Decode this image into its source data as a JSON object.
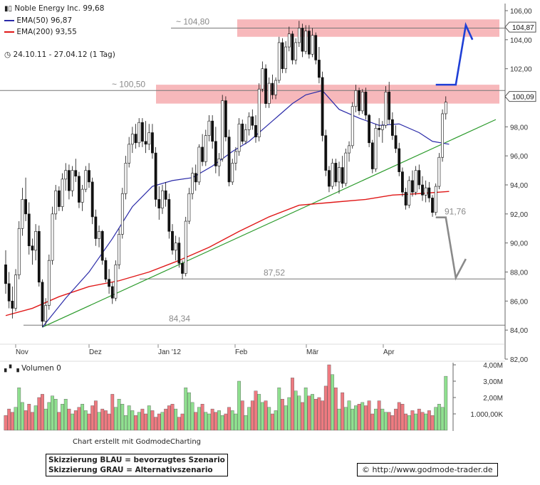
{
  "header": {
    "title": "Noble Energy Inc. 99,68",
    "ema50_label": "EMA(50) 96,87",
    "ema200_label": "EMA(200) 93,55",
    "range_label": "24.10.11 - 27.04.12 (1 Tag)"
  },
  "colors": {
    "ema50": "#2a2aa8",
    "ema200": "#e01818",
    "trend": "#2a9a2a",
    "zone": "#f4a0a4",
    "bull_volume": "#8fe08f",
    "bear_volume": "#ee7a80",
    "scenario_blue": "#1f3fd6",
    "scenario_grey": "#8a8a8a"
  },
  "chart_data": [
    {
      "type": "candlestick",
      "title": "Noble Energy Inc. 99,68",
      "x_ticks": [
        "Nov",
        "Dez",
        "Jan '12",
        "Feb",
        "Mär",
        "Apr"
      ],
      "y_ticks": [
        "82,00",
        "84,00",
        "86,00",
        "88,00",
        "90,00",
        "92,00",
        "94,00",
        "96,00",
        "98,00",
        "100,00",
        "102,00",
        "104,00",
        "106,00"
      ],
      "ylim": [
        82,
        106
      ],
      "current_price_labels": [
        "104,87",
        "100,09"
      ],
      "series": [
        {
          "name": "EMA(50) 96,87",
          "last": 96.87
        },
        {
          "name": "EMA(200) 93,55",
          "last": 93.55
        }
      ],
      "levels": [
        {
          "label": "~ 104,80",
          "value": 104.8,
          "kind": "resistance-zone",
          "zone": [
            104.2,
            105.4
          ]
        },
        {
          "label": "~ 100,50",
          "value": 100.5,
          "kind": "resistance-zone",
          "zone": [
            99.6,
            100.9
          ]
        },
        {
          "label": "87,52",
          "value": 87.52,
          "kind": "support"
        },
        {
          "label": "84,34",
          "value": 84.34,
          "kind": "support"
        },
        {
          "label": "91,76",
          "value": 91.76,
          "kind": "support-mark"
        }
      ],
      "ohlc": [
        [
          88.5,
          89.5,
          86.5,
          87.2
        ],
        [
          87.2,
          88.0,
          85.5,
          86.0
        ],
        [
          86.0,
          87.0,
          84.8,
          85.5
        ],
        [
          85.5,
          88.2,
          85.3,
          87.8
        ],
        [
          87.8,
          91.5,
          87.5,
          91.0
        ],
        [
          91.0,
          93.8,
          90.5,
          93.0
        ],
        [
          93.0,
          94.5,
          91.5,
          92.0
        ],
        [
          92.0,
          92.8,
          89.2,
          89.8
        ],
        [
          89.8,
          90.3,
          88.5,
          89.5
        ],
        [
          89.5,
          91.3,
          88.8,
          90.8
        ],
        [
          90.8,
          91.2,
          87.0,
          87.3
        ],
        [
          87.3,
          87.5,
          84.2,
          84.6
        ],
        [
          84.6,
          86.2,
          84.3,
          85.7
        ],
        [
          85.7,
          89.2,
          85.4,
          88.8
        ],
        [
          88.8,
          92.5,
          88.5,
          92.0
        ],
        [
          92.0,
          94.0,
          91.6,
          93.6
        ],
        [
          93.6,
          93.9,
          92.2,
          92.5
        ],
        [
          92.5,
          94.8,
          92.2,
          94.4
        ],
        [
          94.4,
          95.5,
          93.6,
          95.0
        ],
        [
          95.0,
          95.4,
          93.0,
          93.6
        ],
        [
          93.6,
          95.3,
          93.2,
          95.0
        ],
        [
          95.0,
          95.8,
          94.2,
          94.6
        ],
        [
          94.6,
          94.9,
          92.4,
          92.8
        ],
        [
          92.8,
          94.0,
          92.2,
          93.7
        ],
        [
          93.7,
          95.3,
          93.5,
          95.0
        ],
        [
          95.0,
          95.5,
          93.8,
          94.2
        ],
        [
          94.2,
          94.5,
          91.3,
          91.8
        ],
        [
          91.8,
          92.3,
          89.8,
          90.3
        ],
        [
          90.3,
          91.2,
          89.7,
          90.8
        ],
        [
          90.8,
          90.9,
          88.5,
          88.8
        ],
        [
          88.8,
          89.0,
          87.3,
          87.5
        ],
        [
          87.5,
          88.2,
          86.5,
          87.0
        ],
        [
          87.0,
          87.3,
          85.8,
          86.2
        ],
        [
          86.2,
          88.8,
          86.0,
          88.5
        ],
        [
          88.5,
          91.0,
          88.2,
          90.6
        ],
        [
          90.6,
          93.8,
          90.3,
          93.4
        ],
        [
          93.4,
          96.0,
          93.0,
          95.5
        ],
        [
          95.5,
          97.3,
          95.2,
          96.8
        ],
        [
          96.8,
          98.0,
          96.2,
          97.5
        ],
        [
          97.5,
          98.2,
          96.5,
          96.9
        ],
        [
          96.9,
          98.6,
          96.6,
          98.3
        ],
        [
          98.3,
          98.6,
          96.6,
          97.0
        ],
        [
          97.0,
          98.4,
          96.2,
          96.8
        ],
        [
          96.8,
          98.2,
          96.4,
          97.6
        ],
        [
          97.6,
          98.2,
          95.8,
          96.2
        ],
        [
          96.2,
          96.6,
          92.5,
          93.0
        ],
        [
          93.0,
          93.9,
          91.6,
          92.4
        ],
        [
          92.4,
          94.0,
          92.0,
          93.6
        ],
        [
          93.6,
          94.2,
          92.5,
          93.0
        ],
        [
          93.0,
          93.4,
          90.3,
          90.8
        ],
        [
          90.8,
          91.3,
          89.2,
          89.5
        ],
        [
          89.5,
          90.5,
          88.8,
          90.0
        ],
        [
          90.0,
          90.4,
          88.3,
          88.6
        ],
        [
          88.6,
          88.8,
          87.5,
          87.9
        ],
        [
          87.9,
          91.8,
          87.7,
          91.5
        ],
        [
          91.5,
          93.8,
          91.3,
          93.4
        ],
        [
          93.4,
          95.2,
          93.0,
          94.8
        ],
        [
          94.8,
          95.4,
          93.6,
          94.2
        ],
        [
          94.2,
          96.8,
          94.0,
          96.6
        ],
        [
          96.6,
          97.5,
          95.3,
          95.6
        ],
        [
          95.6,
          97.8,
          95.3,
          97.4
        ],
        [
          97.4,
          98.8,
          97.0,
          98.4
        ],
        [
          98.4,
          98.8,
          96.5,
          97.0
        ],
        [
          97.0,
          98.0,
          94.8,
          95.3
        ],
        [
          95.3,
          96.2,
          94.6,
          95.8
        ],
        [
          95.8,
          100.2,
          95.6,
          99.8
        ],
        [
          99.8,
          100.1,
          97.0,
          97.3
        ],
        [
          97.3,
          97.8,
          93.9,
          94.2
        ],
        [
          94.2,
          95.8,
          94.0,
          95.5
        ],
        [
          95.5,
          96.6,
          95.0,
          96.3
        ],
        [
          96.3,
          98.6,
          96.0,
          98.2
        ],
        [
          98.2,
          98.5,
          96.8,
          97.0
        ],
        [
          97.0,
          98.2,
          96.8,
          97.8
        ],
        [
          97.8,
          99.0,
          97.4,
          98.7
        ],
        [
          98.7,
          99.2,
          97.8,
          98.1
        ],
        [
          98.1,
          98.8,
          96.9,
          97.3
        ],
        [
          97.3,
          101.0,
          97.0,
          100.6
        ],
        [
          100.6,
          102.5,
          100.4,
          102.0
        ],
        [
          102.0,
          102.3,
          99.3,
          99.6
        ],
        [
          99.6,
          101.4,
          99.3,
          101.0
        ],
        [
          101.0,
          101.6,
          99.9,
          100.2
        ],
        [
          100.2,
          101.4,
          99.9,
          101.2
        ],
        [
          101.2,
          104.2,
          101.0,
          103.8
        ],
        [
          103.8,
          104.1,
          101.7,
          102.0
        ],
        [
          102.0,
          103.9,
          101.7,
          103.5
        ],
        [
          103.5,
          104.9,
          103.2,
          104.4
        ],
        [
          104.4,
          104.6,
          102.3,
          102.6
        ],
        [
          102.6,
          104.1,
          102.3,
          103.8
        ],
        [
          103.8,
          105.3,
          103.5,
          104.8
        ],
        [
          104.8,
          105.1,
          102.8,
          103.2
        ],
        [
          103.2,
          105.0,
          103.0,
          104.6
        ],
        [
          104.6,
          105.0,
          102.7,
          103.0
        ],
        [
          103.0,
          104.8,
          102.8,
          104.3
        ],
        [
          104.3,
          104.5,
          102.3,
          102.6
        ],
        [
          102.6,
          103.5,
          101.0,
          101.4
        ],
        [
          101.4,
          101.8,
          97.0,
          97.4
        ],
        [
          97.4,
          97.8,
          94.6,
          95.0
        ],
        [
          95.0,
          95.3,
          93.5,
          93.9
        ],
        [
          93.9,
          95.8,
          93.7,
          95.5
        ],
        [
          95.5,
          95.8,
          93.9,
          94.2
        ],
        [
          94.2,
          95.6,
          93.4,
          95.2
        ],
        [
          95.2,
          96.0,
          93.8,
          94.1
        ],
        [
          94.1,
          96.5,
          93.9,
          96.2
        ],
        [
          96.2,
          97.0,
          95.6,
          96.7
        ],
        [
          96.7,
          99.7,
          96.5,
          99.4
        ],
        [
          99.4,
          100.9,
          99.0,
          100.5
        ],
        [
          100.5,
          100.7,
          98.8,
          99.1
        ],
        [
          99.1,
          100.6,
          98.9,
          100.4
        ],
        [
          100.4,
          100.7,
          98.5,
          98.8
        ],
        [
          98.8,
          98.9,
          96.6,
          96.9
        ],
        [
          96.9,
          97.1,
          94.8,
          95.1
        ],
        [
          95.1,
          98.2,
          94.9,
          97.9
        ],
        [
          97.9,
          98.6,
          97.3,
          97.8
        ],
        [
          97.8,
          98.4,
          96.9,
          98.1
        ],
        [
          98.1,
          100.8,
          97.9,
          100.4
        ],
        [
          100.4,
          101.1,
          98.2,
          98.5
        ],
        [
          98.5,
          99.0,
          97.1,
          97.4
        ],
        [
          97.4,
          98.1,
          96.2,
          96.5
        ],
        [
          96.5,
          96.9,
          94.6,
          94.9
        ],
        [
          94.9,
          95.2,
          93.2,
          93.5
        ],
        [
          93.5,
          93.8,
          92.3,
          92.6
        ],
        [
          92.6,
          94.6,
          92.4,
          94.3
        ],
        [
          94.3,
          95.0,
          93.2,
          93.5
        ],
        [
          93.5,
          95.3,
          93.3,
          95.0
        ],
        [
          95.0,
          95.4,
          93.7,
          94.0
        ],
        [
          94.0,
          94.6,
          92.9,
          93.3
        ],
        [
          93.3,
          94.3,
          92.8,
          93.8
        ],
        [
          93.8,
          94.2,
          92.8,
          93.1
        ],
        [
          93.1,
          93.3,
          91.8,
          92.1
        ],
        [
          92.1,
          94.1,
          91.9,
          93.9
        ],
        [
          93.9,
          96.2,
          93.7,
          95.9
        ],
        [
          95.9,
          99.2,
          95.6,
          98.9
        ],
        [
          98.9,
          100.1,
          98.5,
          99.7
        ]
      ],
      "volume": [
        0.9,
        1.3,
        1.1,
        1.4,
        2.6,
        1.7,
        1.2,
        1.6,
        1.1,
        1.5,
        2.0,
        2.2,
        1.3,
        1.7,
        2.1,
        1.9,
        1.1,
        1.6,
        1.9,
        1.3,
        1.0,
        1.2,
        1.4,
        1.6,
        1.2,
        1.0,
        1.5,
        1.8,
        1.1,
        1.3,
        1.2,
        1.0,
        2.2,
        1.4,
        1.9,
        1.6,
        0.9,
        1.5,
        1.2,
        0.9,
        1.1,
        1.3,
        1.0,
        1.5,
        1.2,
        0.8,
        1.0,
        1.1,
        1.3,
        1.5,
        1.6,
        1.3,
        0.8,
        1.0,
        2.6,
        2.3,
        1.7,
        1.1,
        1.4,
        1.6,
        1.1,
        1.0,
        1.3,
        1.1,
        1.2,
        0.9,
        1.0,
        1.4,
        1.2,
        1.0,
        3.0,
        1.8,
        0.9,
        1.4,
        1.8,
        2.4,
        2.2,
        1.7,
        1.8,
        1.4,
        1.0,
        1.2,
        2.6,
        1.9,
        1.5,
        2.0,
        3.2,
        2.4,
        2.1,
        1.7,
        2.6,
        2.1,
        2.2,
        1.9,
        2.0,
        1.8,
        2.7,
        4.0,
        3.4,
        2.6,
        1.3,
        2.3,
        1.4,
        1.8,
        1.3,
        1.5,
        1.6,
        1.7,
        1.5,
        1.8,
        1.0,
        1.3,
        1.8,
        1.3,
        1.1,
        1.1,
        0.9,
        1.3,
        1.7,
        1.6,
        1.0,
        0.9,
        1.2,
        1.0,
        1.3,
        1.1,
        1.0,
        1.2,
        0.9,
        1.4,
        1.6,
        1.4,
        3.3
      ],
      "volume_ticks": [
        "1.000,00K",
        "2,00M",
        "3,00M",
        "4,00M"
      ],
      "volume_max": 4.0,
      "ema50_points": [
        [
          11,
          84.2
        ],
        [
          18,
          86.2
        ],
        [
          25,
          88.0
        ],
        [
          32,
          90.3
        ],
        [
          38,
          92.5
        ],
        [
          44,
          93.9
        ],
        [
          50,
          94.3
        ],
        [
          56,
          94.5
        ],
        [
          62,
          95.3
        ],
        [
          68,
          96.3
        ],
        [
          73,
          97.0
        ],
        [
          78,
          98.0
        ],
        [
          82,
          98.8
        ],
        [
          86,
          99.6
        ],
        [
          90,
          100.2
        ],
        [
          95,
          100.5
        ],
        [
          100,
          99.2
        ],
        [
          106,
          98.6
        ],
        [
          112,
          98.1
        ],
        [
          118,
          98.2
        ],
        [
          124,
          97.6
        ],
        [
          128,
          97.0
        ],
        [
          133,
          96.8
        ]
      ],
      "ema200_points": [
        [
          0,
          85.0
        ],
        [
          8,
          85.5
        ],
        [
          16,
          86.3
        ],
        [
          25,
          87.0
        ],
        [
          34,
          87.4
        ],
        [
          43,
          88.0
        ],
        [
          52,
          88.8
        ],
        [
          61,
          89.7
        ],
        [
          70,
          90.8
        ],
        [
          79,
          91.8
        ],
        [
          88,
          92.6
        ],
        [
          98,
          92.8
        ],
        [
          108,
          93.0
        ],
        [
          116,
          93.3
        ],
        [
          124,
          93.4
        ],
        [
          133,
          93.55
        ]
      ],
      "trendline": [
        [
          11,
          84.2
        ],
        [
          147,
          98.5
        ]
      ],
      "scenario_blue": [
        [
          129,
          100.9
        ],
        [
          135,
          100.9
        ],
        [
          138,
          105.0
        ],
        [
          140,
          104.0
        ]
      ],
      "scenario_grey": [
        [
          129,
          91.76
        ],
        [
          132,
          91.76
        ],
        [
          135,
          87.6
        ],
        [
          138,
          88.9
        ]
      ]
    }
  ],
  "footer": {
    "volume_label": "Volumen 0",
    "credit": "Chart erstellt mit GodmodeCharting",
    "note_line1": "Skizzierung BLAU = bevorzugtes Szenario",
    "note_line2": "Skizzierung GRAU = Alternativszenario",
    "copyright_symbol": "©",
    "url": "http://www.godmode-trader.de"
  }
}
